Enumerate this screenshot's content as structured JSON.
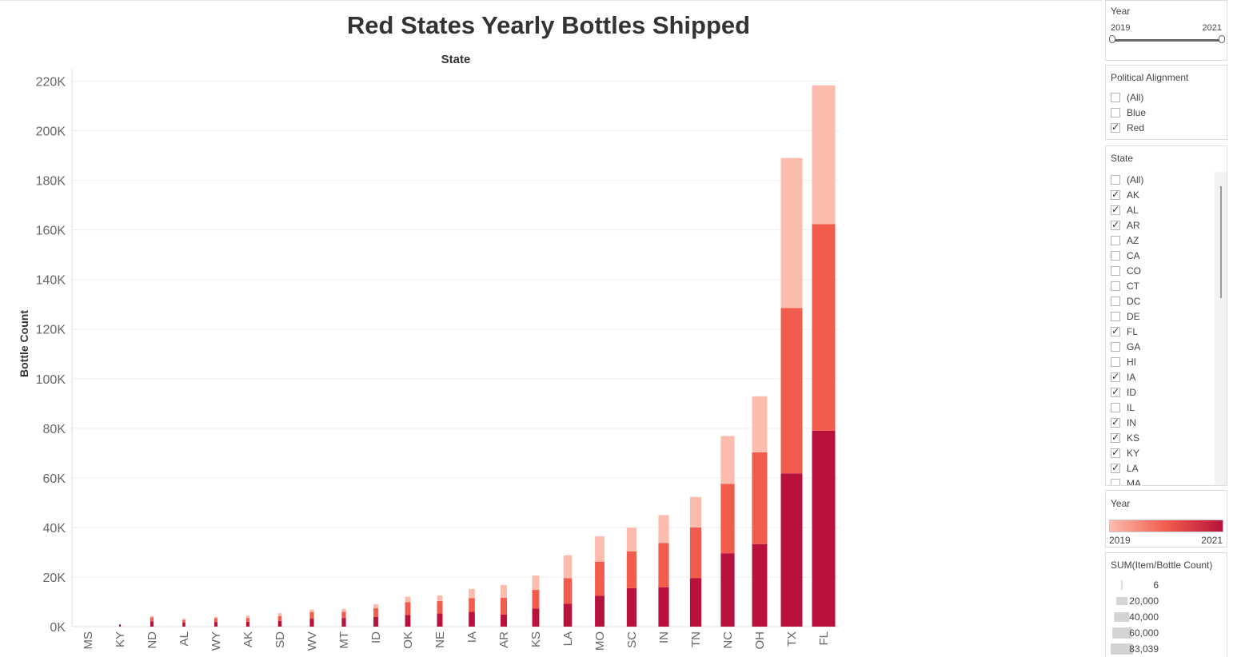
{
  "chart_data": {
    "type": "bar",
    "stacked": true,
    "title": "Red States Yearly Bottles Shipped",
    "column_header": "State",
    "ylabel": "Bottle Count",
    "xlabel": "",
    "ylim": [
      0,
      225000
    ],
    "yticks": [
      0,
      20000,
      40000,
      60000,
      80000,
      100000,
      120000,
      140000,
      160000,
      180000,
      200000,
      220000
    ],
    "ytick_labels": [
      "0K",
      "20K",
      "40K",
      "60K",
      "80K",
      "100K",
      "120K",
      "140K",
      "160K",
      "180K",
      "200K",
      "220K"
    ],
    "grid": true,
    "categories": [
      "MS",
      "KY",
      "ND",
      "AL",
      "WY",
      "AK",
      "SD",
      "WV",
      "MT",
      "ID",
      "OK",
      "NE",
      "IA",
      "AR",
      "KS",
      "LA",
      "MO",
      "SC",
      "IN",
      "TN",
      "NC",
      "OH",
      "TX",
      "FL"
    ],
    "series": [
      {
        "name": "2021",
        "color": "#b8123c",
        "values": [
          0,
          900,
          2200,
          1700,
          1900,
          2000,
          2300,
          3200,
          3500,
          3900,
          4700,
          5300,
          6000,
          4900,
          7300,
          9200,
          12500,
          15500,
          15900,
          19500,
          29600,
          33300,
          61800,
          79000
        ]
      },
      {
        "name": "2020",
        "color": "#f15c4d",
        "values": [
          0,
          0,
          1500,
          1000,
          1500,
          1500,
          2000,
          2700,
          2500,
          3500,
          5200,
          5000,
          5500,
          6700,
          7500,
          10300,
          13700,
          14800,
          17800,
          20500,
          28000,
          37000,
          66700,
          83300
        ]
      },
      {
        "name": "2019",
        "color": "#fcbcad",
        "values": [
          0,
          0,
          600,
          600,
          600,
          1000,
          1200,
          1000,
          1200,
          1600,
          2200,
          2300,
          3700,
          5200,
          5800,
          9300,
          10200,
          9600,
          11300,
          12300,
          19300,
          22600,
          60500,
          56000
        ]
      }
    ]
  },
  "filters": {
    "year_slider": {
      "title": "Year",
      "min_label": "2019",
      "max_label": "2021"
    },
    "political_alignment": {
      "title": "Political Alignment",
      "options": [
        {
          "label": "(All)",
          "checked": false
        },
        {
          "label": "Blue",
          "checked": false
        },
        {
          "label": "Red",
          "checked": true
        }
      ]
    },
    "state": {
      "title": "State",
      "options": [
        {
          "label": "(All)",
          "checked": false
        },
        {
          "label": "AK",
          "checked": true
        },
        {
          "label": "AL",
          "checked": true
        },
        {
          "label": "AR",
          "checked": true
        },
        {
          "label": "AZ",
          "checked": false
        },
        {
          "label": "CA",
          "checked": false
        },
        {
          "label": "CO",
          "checked": false
        },
        {
          "label": "CT",
          "checked": false
        },
        {
          "label": "DC",
          "checked": false
        },
        {
          "label": "DE",
          "checked": false
        },
        {
          "label": "FL",
          "checked": true
        },
        {
          "label": "GA",
          "checked": false
        },
        {
          "label": "HI",
          "checked": false
        },
        {
          "label": "IA",
          "checked": true
        },
        {
          "label": "ID",
          "checked": true
        },
        {
          "label": "IL",
          "checked": false
        },
        {
          "label": "IN",
          "checked": true
        },
        {
          "label": "KS",
          "checked": true
        },
        {
          "label": "KY",
          "checked": true
        },
        {
          "label": "LA",
          "checked": true
        },
        {
          "label": "MA",
          "checked": false
        }
      ]
    }
  },
  "legends": {
    "year_color": {
      "title": "Year",
      "min_label": "2019",
      "max_label": "2021",
      "colors": [
        "#fcbcad",
        "#f15c4d",
        "#b8123c"
      ]
    },
    "size": {
      "title": "SUM(Item/Bottle Count)",
      "entries": [
        {
          "label": "6",
          "value": 6
        },
        {
          "label": "20,000",
          "value": 20000
        },
        {
          "label": "40,000",
          "value": 40000
        },
        {
          "label": "60,000",
          "value": 60000
        },
        {
          "label": "83,039",
          "value": 83039
        }
      ]
    }
  }
}
